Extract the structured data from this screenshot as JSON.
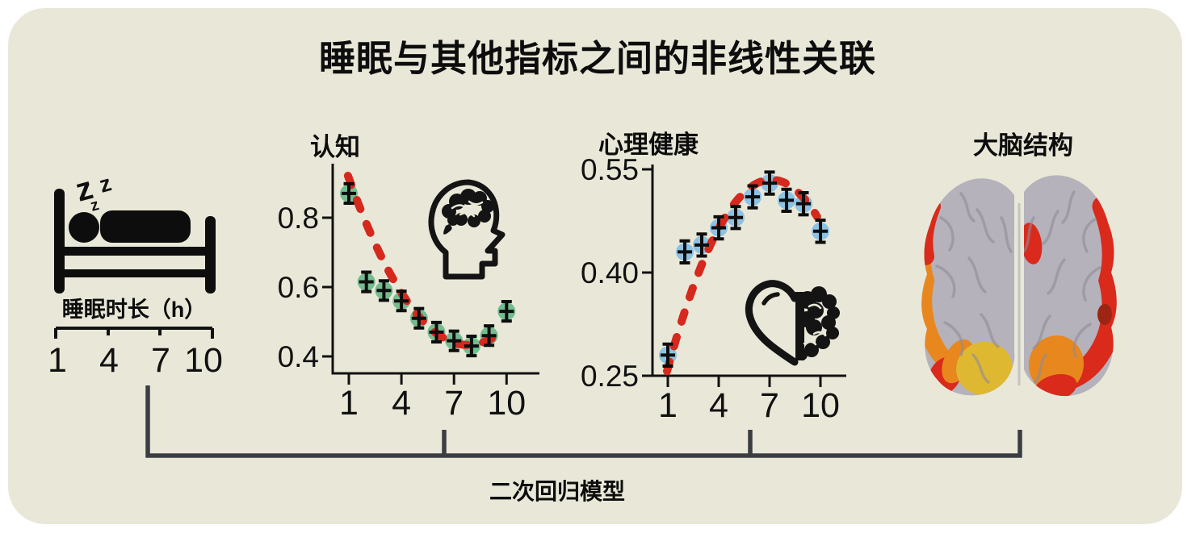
{
  "title": "睡眠与其他指标之间的非线性关联",
  "colors": {
    "background": "#e9e8d8",
    "ink": "#111111",
    "curve_red": "#d6291d",
    "cognition_dot_green": "#74bc90",
    "mental_dot_blue": "#8cc2e2",
    "bracket_gray": "#3a3e43",
    "brain_surface_gray": "#b5b2bb",
    "brain_region_red": "#d92a1c",
    "brain_region_orange": "#e8871e",
    "brain_region_yellow": "#dfb832"
  },
  "sleep_axis": {
    "icon": "sleeper-bed-icon",
    "zzz": [
      "z",
      "z",
      "z"
    ],
    "label": "睡眠时长（h）",
    "ticks": [
      "1",
      "4",
      "7",
      "10"
    ]
  },
  "bracket_label": "二次回归模型",
  "brain_panel": {
    "title": "大脑结构",
    "icon": "brain-surface-map",
    "highlight_colors": [
      "#d92a1c",
      "#e8871e",
      "#dfb832"
    ]
  },
  "chart_data": [
    {
      "type": "scatter",
      "title": "认知",
      "icon": "head-with-brain",
      "x": [
        1,
        2,
        3,
        4,
        5,
        6,
        7,
        8,
        9,
        10
      ],
      "values": [
        0.87,
        0.615,
        0.59,
        0.56,
        0.51,
        0.47,
        0.445,
        0.43,
        0.46,
        0.53
      ],
      "error": 0.028,
      "fit": {
        "model": "quadratic",
        "a": 0.0104,
        "vertex_x": 7.8,
        "vertex_y": 0.433,
        "x_min": 0.95,
        "x_max": 9.85,
        "style": "dashed"
      },
      "xticks": [
        "1",
        "4",
        "7",
        "10"
      ],
      "yticks": [
        "0.8",
        "0.6",
        "0.4"
      ],
      "xlim": [
        0,
        11
      ],
      "ylim": [
        0.37,
        0.97
      ],
      "grid": false,
      "legend": "none",
      "dot_color": "#74bc90",
      "curve_color": "#d6291d"
    },
    {
      "type": "scatter",
      "title": "心理健康",
      "icon": "heart-brain",
      "x": [
        1,
        2,
        3,
        4,
        5,
        6,
        7,
        8,
        9,
        10
      ],
      "values": [
        0.28,
        0.43,
        0.44,
        0.465,
        0.48,
        0.51,
        0.53,
        0.505,
        0.5,
        0.46
      ],
      "error": 0.016,
      "fit": {
        "model": "quadratic",
        "a": -0.00736,
        "vertex_x": 7.1,
        "vertex_y": 0.535,
        "x_min": 0.95,
        "x_max": 9.9,
        "style": "dashed"
      },
      "xticks": [
        "1",
        "4",
        "7",
        "10"
      ],
      "yticks": [
        "0.55",
        "0.40",
        "0.25"
      ],
      "xlim": [
        0,
        11
      ],
      "ylim": [
        0.25,
        0.57
      ],
      "grid": false,
      "legend": "none",
      "dot_color": "#8cc2e2",
      "curve_color": "#d6291d"
    }
  ]
}
